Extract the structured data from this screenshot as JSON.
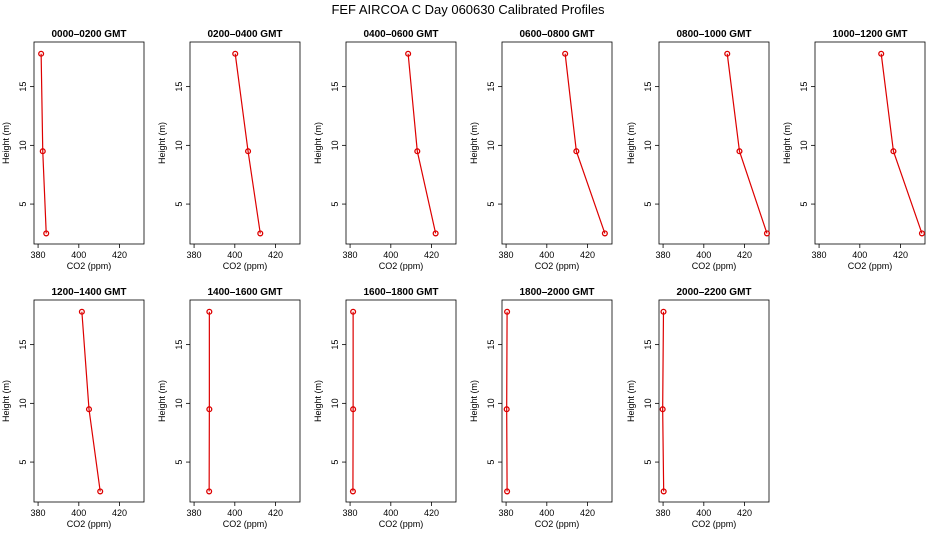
{
  "title": "FEF AIRCOA C  Day 060630  Calibrated Profiles",
  "colors": {
    "series": "#dd0000",
    "axis": "#000000",
    "background": "#ffffff"
  },
  "chart_data": [
    {
      "type": "line",
      "title": "0000–0200 GMT",
      "xlabel": "CO2 (ppm)",
      "ylabel": "Height (m)",
      "xlim": [
        378,
        432
      ],
      "ylim": [
        1.6,
        18.8
      ],
      "x_ticks": [
        380,
        400,
        420
      ],
      "y_ticks": [
        5,
        10,
        15
      ],
      "points": [
        {
          "x": 381.5,
          "y": 17.8
        },
        {
          "x": 382.3,
          "y": 9.5
        },
        {
          "x": 384.0,
          "y": 2.5
        }
      ]
    },
    {
      "type": "line",
      "title": "0200–0400 GMT",
      "xlabel": "CO2 (ppm)",
      "ylabel": "Height (m)",
      "xlim": [
        378,
        432
      ],
      "ylim": [
        1.6,
        18.8
      ],
      "x_ticks": [
        380,
        400,
        420
      ],
      "y_ticks": [
        5,
        10,
        15
      ],
      "points": [
        {
          "x": 400.2,
          "y": 17.8
        },
        {
          "x": 406.5,
          "y": 9.5
        },
        {
          "x": 412.5,
          "y": 2.5
        }
      ]
    },
    {
      "type": "line",
      "title": "0400–0600 GMT",
      "xlabel": "CO2 (ppm)",
      "ylabel": "Height (m)",
      "xlim": [
        378,
        432
      ],
      "ylim": [
        1.6,
        18.8
      ],
      "x_ticks": [
        380,
        400,
        420
      ],
      "y_ticks": [
        5,
        10,
        15
      ],
      "points": [
        {
          "x": 408.5,
          "y": 17.8
        },
        {
          "x": 413.0,
          "y": 9.5
        },
        {
          "x": 422.0,
          "y": 2.5
        }
      ]
    },
    {
      "type": "line",
      "title": "0600–0800 GMT",
      "xlabel": "CO2 (ppm)",
      "ylabel": "Height (m)",
      "xlim": [
        378,
        432
      ],
      "ylim": [
        1.6,
        18.8
      ],
      "x_ticks": [
        380,
        400,
        420
      ],
      "y_ticks": [
        5,
        10,
        15
      ],
      "points": [
        {
          "x": 409.0,
          "y": 17.8
        },
        {
          "x": 414.5,
          "y": 9.5
        },
        {
          "x": 428.5,
          "y": 2.5
        }
      ]
    },
    {
      "type": "line",
      "title": "0800–1000 GMT",
      "xlabel": "CO2 (ppm)",
      "ylabel": "Height (m)",
      "xlim": [
        378,
        432
      ],
      "ylim": [
        1.6,
        18.8
      ],
      "x_ticks": [
        380,
        400,
        420
      ],
      "y_ticks": [
        5,
        10,
        15
      ],
      "points": [
        {
          "x": 411.5,
          "y": 17.8
        },
        {
          "x": 417.5,
          "y": 9.5
        },
        {
          "x": 431.0,
          "y": 2.5
        }
      ]
    },
    {
      "type": "line",
      "title": "1000–1200 GMT",
      "xlabel": "CO2 (ppm)",
      "ylabel": "Height (m)",
      "xlim": [
        378,
        432
      ],
      "ylim": [
        1.6,
        18.8
      ],
      "x_ticks": [
        380,
        400,
        420
      ],
      "y_ticks": [
        5,
        10,
        15
      ],
      "points": [
        {
          "x": 410.5,
          "y": 17.8
        },
        {
          "x": 416.5,
          "y": 9.5
        },
        {
          "x": 430.5,
          "y": 2.5
        }
      ]
    },
    {
      "type": "line",
      "title": "1200–1400 GMT",
      "xlabel": "CO2 (ppm)",
      "ylabel": "Height (m)",
      "xlim": [
        378,
        432
      ],
      "ylim": [
        1.6,
        18.8
      ],
      "x_ticks": [
        380,
        400,
        420
      ],
      "y_ticks": [
        5,
        10,
        15
      ],
      "points": [
        {
          "x": 401.5,
          "y": 17.8
        },
        {
          "x": 405.0,
          "y": 9.5
        },
        {
          "x": 410.5,
          "y": 2.5
        }
      ]
    },
    {
      "type": "line",
      "title": "1400–1600 GMT",
      "xlabel": "CO2 (ppm)",
      "ylabel": "Height (m)",
      "xlim": [
        378,
        432
      ],
      "ylim": [
        1.6,
        18.8
      ],
      "x_ticks": [
        380,
        400,
        420
      ],
      "y_ticks": [
        5,
        10,
        15
      ],
      "points": [
        {
          "x": 387.5,
          "y": 17.8
        },
        {
          "x": 387.5,
          "y": 9.5
        },
        {
          "x": 387.4,
          "y": 2.5
        }
      ]
    },
    {
      "type": "line",
      "title": "1600–1800 GMT",
      "xlabel": "CO2 (ppm)",
      "ylabel": "Height (m)",
      "xlim": [
        378,
        432
      ],
      "ylim": [
        1.6,
        18.8
      ],
      "x_ticks": [
        380,
        400,
        420
      ],
      "y_ticks": [
        5,
        10,
        15
      ],
      "points": [
        {
          "x": 381.5,
          "y": 17.8
        },
        {
          "x": 381.5,
          "y": 9.5
        },
        {
          "x": 381.4,
          "y": 2.5
        }
      ]
    },
    {
      "type": "line",
      "title": "1800–2000 GMT",
      "xlabel": "CO2 (ppm)",
      "ylabel": "Height (m)",
      "xlim": [
        378,
        432
      ],
      "ylim": [
        1.6,
        18.8
      ],
      "x_ticks": [
        380,
        400,
        420
      ],
      "y_ticks": [
        5,
        10,
        15
      ],
      "points": [
        {
          "x": 380.5,
          "y": 17.8
        },
        {
          "x": 380.3,
          "y": 9.5
        },
        {
          "x": 380.5,
          "y": 2.5
        }
      ]
    },
    {
      "type": "line",
      "title": "2000–2200 GMT",
      "xlabel": "CO2 (ppm)",
      "ylabel": "Height (m)",
      "xlim": [
        378,
        432
      ],
      "ylim": [
        1.6,
        18.8
      ],
      "x_ticks": [
        380,
        400,
        420
      ],
      "y_ticks": [
        5,
        10,
        15
      ],
      "points": [
        {
          "x": 380.2,
          "y": 17.8
        },
        {
          "x": 379.8,
          "y": 9.5
        },
        {
          "x": 380.3,
          "y": 2.5
        }
      ]
    }
  ]
}
